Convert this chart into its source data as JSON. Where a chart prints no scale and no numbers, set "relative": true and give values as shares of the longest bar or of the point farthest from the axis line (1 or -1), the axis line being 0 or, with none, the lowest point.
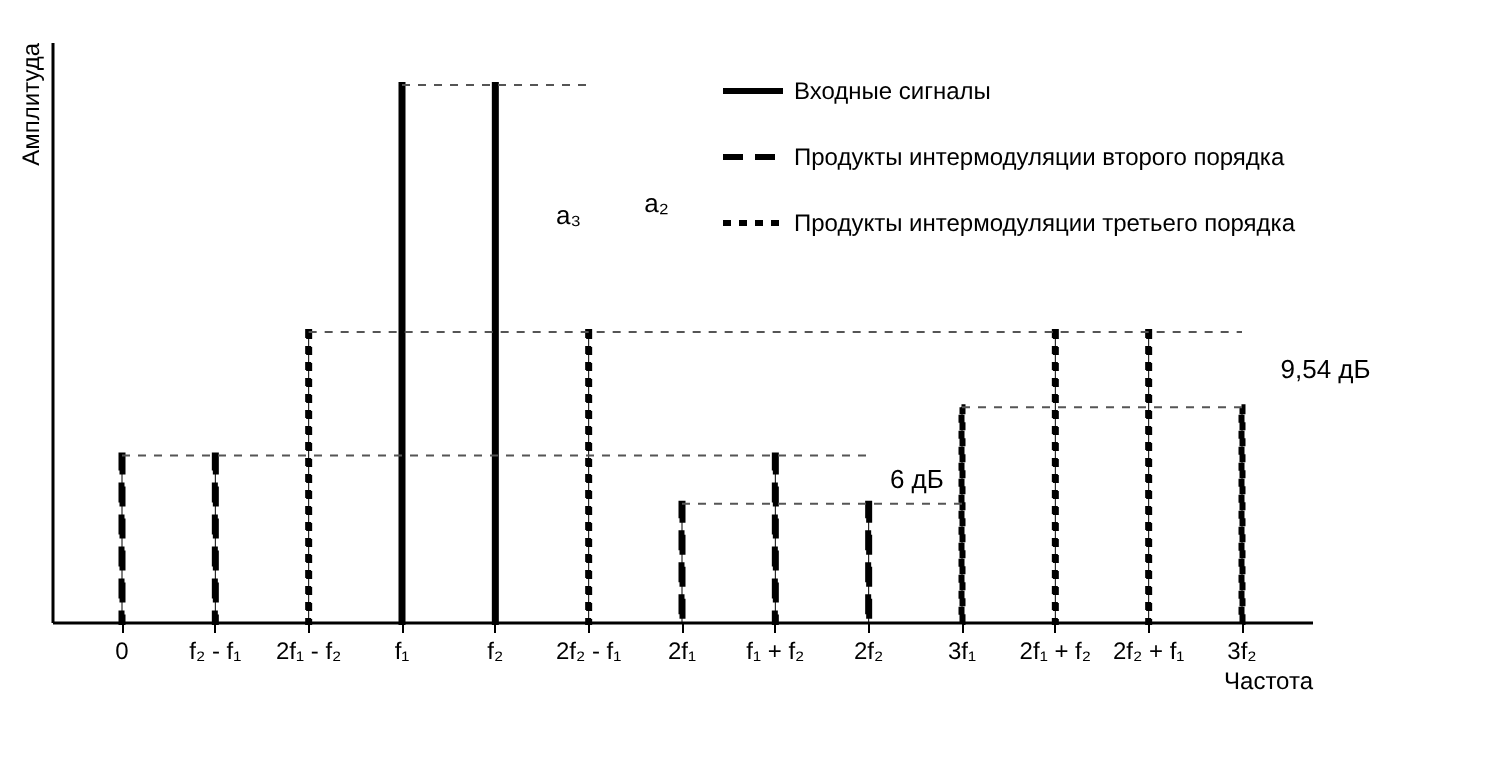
{
  "chart_data": {
    "type": "bar",
    "relative": true,
    "xlabel": "Частота",
    "ylabel": "Амплитуда",
    "categories": [
      "0",
      "f₂ - f₁",
      "2f₁ - f₂",
      "f₁",
      "f₂",
      "2f₂ - f₁",
      "2f₁",
      "f₁ + f₂",
      "2f₂",
      "3f₁",
      "2f₁ + f₂",
      "2f₂ + f₁",
      "3f₂"
    ],
    "tick_labels": "x",
    "legend": "top right",
    "series": [
      {
        "name": "Входные сигналы",
        "color": "#000000",
        "line_style": "solid",
        "values": [
          null,
          null,
          null,
          1,
          1,
          null,
          null,
          null,
          null,
          null,
          null,
          null,
          null
        ]
      },
      {
        "name": "Продукты интермодуляции второго порядка",
        "color": "#000000",
        "line_style": "dashed",
        "values": [
          0.31,
          0.31,
          null,
          null,
          null,
          null,
          0.22,
          0.31,
          0.22,
          null,
          null,
          null,
          null
        ]
      },
      {
        "name": "Продукты интермодуляции третьего порядка",
        "color": "#000000",
        "line_style": "dotted",
        "values": [
          null,
          null,
          0.54,
          null,
          null,
          0.54,
          null,
          null,
          null,
          0.4,
          0.54,
          0.54,
          0.4
        ]
      }
    ],
    "ref_lines": [
      {
        "axis": "y",
        "value": 1,
        "color": "#555555",
        "line_style": "dotted"
      },
      {
        "axis": "y",
        "value": 0.54,
        "color": "#555555",
        "line_style": "dotted"
      },
      {
        "axis": "y",
        "value": 0.4,
        "color": "#555555",
        "line_style": "dotted"
      },
      {
        "axis": "y",
        "value": 0.31,
        "color": "#555555",
        "line_style": "dotted"
      },
      {
        "axis": "y",
        "value": 0.22,
        "color": "#555555",
        "line_style": "dotted"
      }
    ],
    "annotations": [
      "a₃",
      "a₂",
      "6 дБ",
      "9,54 дБ"
    ]
  }
}
